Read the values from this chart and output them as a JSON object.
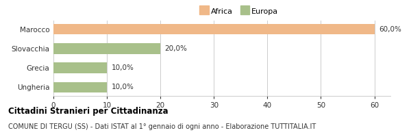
{
  "categories": [
    "Ungheria",
    "Grecia",
    "Slovacchia",
    "Marocco"
  ],
  "values": [
    10.0,
    10.0,
    20.0,
    60.0
  ],
  "colors": [
    "#a8c08a",
    "#a8c08a",
    "#a8c08a",
    "#f0b888"
  ],
  "value_labels": [
    "10,0%",
    "10,0%",
    "20,0%",
    "60,0%"
  ],
  "xlim": [
    0,
    63
  ],
  "xticks": [
    0,
    10,
    20,
    30,
    40,
    50,
    60
  ],
  "legend_africa_color": "#f0b888",
  "legend_europa_color": "#a8c08a",
  "title_bold": "Cittadini Stranieri per Cittadinanza",
  "subtitle": "COMUNE DI TERGU (SS) - Dati ISTAT al 1° gennaio di ogni anno - Elaborazione TUTTITALIA.IT",
  "bar_height": 0.55,
  "background_color": "#ffffff",
  "grid_color": "#cccccc",
  "text_color": "#333333",
  "title_fontsize": 8.5,
  "subtitle_fontsize": 7.0,
  "label_fontsize": 7.5,
  "tick_fontsize": 7.5,
  "legend_fontsize": 8.0
}
